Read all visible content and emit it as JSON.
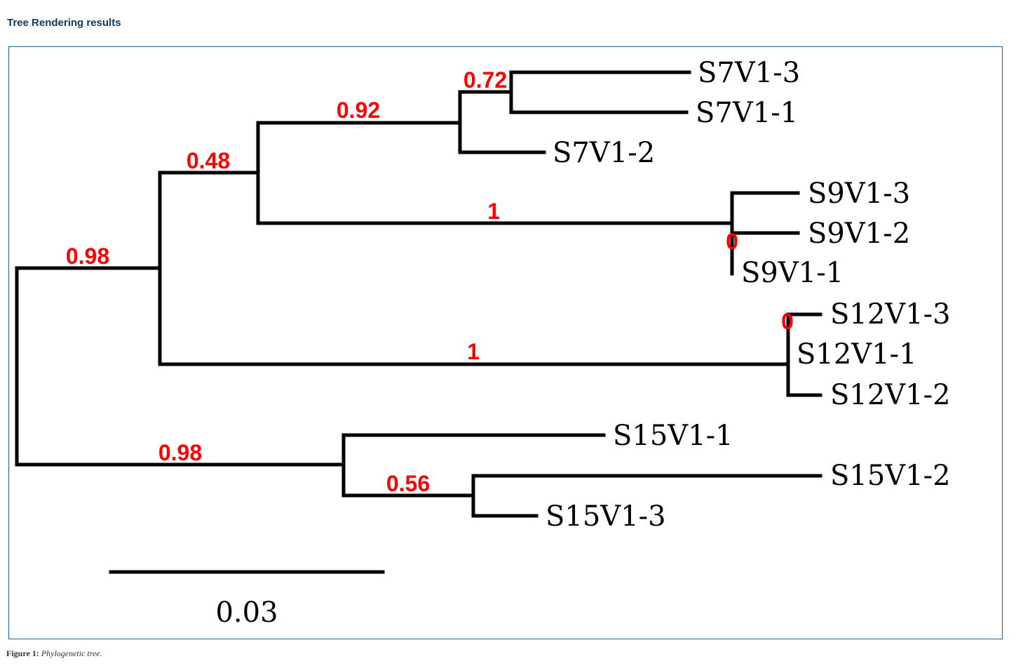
{
  "header": {
    "title": "Tree Rendering results"
  },
  "tree": {
    "leaves": [
      "S7V1-3",
      "S7V1-1",
      "S7V1-2",
      "S9V1-3",
      "S9V1-2",
      "S9V1-1",
      "S12V1-3",
      "S12V1-1",
      "S12V1-2",
      "S15V1-1",
      "S15V1-2",
      "S15V1-3"
    ],
    "support": {
      "root_upper": "0.98",
      "clade_s7_s9": "0.48",
      "clade_s7": "0.92",
      "clade_s7v13_s7v11": "0.72",
      "clade_s9": "1",
      "clade_s9_inner": "0",
      "clade_s12": "1",
      "clade_s12_inner": "0",
      "clade_s15": "0.98",
      "clade_s15v12_s15v13": "0.56"
    },
    "scale_bar_label": "0.03"
  },
  "caption": {
    "label": "Figure 1:",
    "text": "Phylogenetic tree."
  }
}
